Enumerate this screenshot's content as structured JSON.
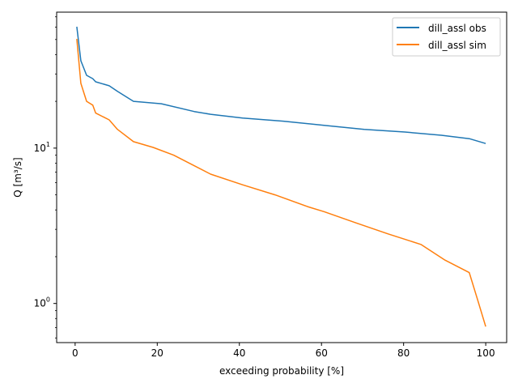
{
  "chart_data": {
    "type": "line",
    "title": "",
    "xlabel": "exceeding probability [%]",
    "ylabel": "Q [m³/s]",
    "xlim": [
      -4.5,
      105.1
    ],
    "ylim": [
      0.56,
      75
    ],
    "yscale": "log",
    "grid": false,
    "legend_position": "top-right",
    "x_ticks": [
      0,
      20,
      40,
      60,
      80,
      100
    ],
    "y_ticks": [
      {
        "value": 1,
        "base": "10",
        "exp": "0"
      },
      {
        "value": 10,
        "base": "10",
        "exp": "1"
      }
    ],
    "series": [
      {
        "name": "dill_assl obs",
        "color": "#1f77b4",
        "x": [
          0.4,
          1.4,
          2.8,
          4.3,
          5,
          8.3,
          10.3,
          14.2,
          21,
          29,
          33,
          40.8,
          50.7,
          60.6,
          70.4,
          80.3,
          89.2,
          96,
          100
        ],
        "y": [
          60.4,
          36.5,
          29.4,
          28,
          26.7,
          25.2,
          23.2,
          20,
          19.3,
          17.2,
          16.5,
          15.6,
          14.9,
          14,
          13.2,
          12.7,
          12.1,
          11.5,
          10.7
        ]
      },
      {
        "name": "dill_assl sim",
        "color": "#ff7f0e",
        "x": [
          0.4,
          1.4,
          2.8,
          4.3,
          5,
          8.3,
          10.3,
          14.2,
          19,
          24,
          29,
          33,
          40.8,
          48.7,
          56.6,
          60.6,
          68.4,
          76.3,
          84.2,
          90.1,
          96,
          98,
          100
        ],
        "y": [
          50.5,
          26.1,
          20,
          18.9,
          16.8,
          15.2,
          13.2,
          11,
          10.1,
          9,
          7.7,
          6.8,
          5.8,
          5.0,
          4.2,
          3.9,
          3.3,
          2.8,
          2.4,
          1.9,
          1.58,
          1.06,
          0.71
        ]
      }
    ]
  }
}
